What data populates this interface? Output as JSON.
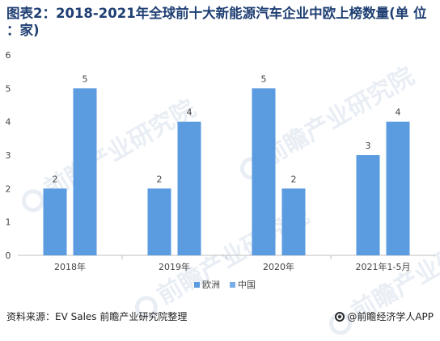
{
  "title": "图表2：2018-2021年全球前十大新能源汽车企业中欧上榜数量(单 位 ：家)",
  "source": "资料来源：EV Sales 前瞻产业研究院整理",
  "credit": "@前瞻经济学人APP",
  "watermark": "前瞻产业研究院",
  "colors": {
    "europe": "#5b9ae0",
    "china": "#5b9ae0",
    "axis": "#bfbfbf",
    "text": "#444444"
  },
  "chart_data": {
    "type": "bar",
    "categories": [
      "2018年",
      "2019年",
      "2020年",
      "2021年1-5月"
    ],
    "series": [
      {
        "name": "欧洲",
        "values": [
          2,
          2,
          5,
          3
        ],
        "color": "#5b9be0"
      },
      {
        "name": "中国",
        "values": [
          5,
          4,
          2,
          4
        ],
        "color": "#5b9be0"
      }
    ],
    "ylim": [
      0,
      6
    ],
    "yticks": [
      0,
      1,
      2,
      3,
      4,
      5,
      6
    ],
    "legend": "bottom-center",
    "grid": false
  }
}
